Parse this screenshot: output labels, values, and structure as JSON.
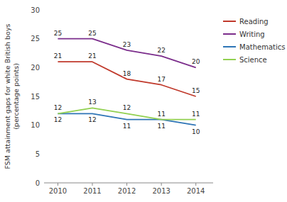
{
  "chart_data": {
    "type": "line",
    "ylabel": "FSM attainment gaps for white British boys\n(percentage points)",
    "x": [
      2010,
      2011,
      2012,
      2013,
      2014
    ],
    "xlim": [
      2009.6,
      2014.5
    ],
    "xticks": [
      2010,
      2011,
      2012,
      2013,
      2014
    ],
    "ylim": [
      0,
      30
    ],
    "yticks": [
      0,
      5,
      10,
      15,
      20,
      25,
      30
    ],
    "series": [
      {
        "name": "Reading",
        "color": "#c0392b",
        "values": [
          21,
          21,
          18,
          17,
          15
        ]
      },
      {
        "name": "Writing",
        "color": "#7b2d8b",
        "values": [
          25,
          25,
          23,
          22,
          20
        ]
      },
      {
        "name": "Mathematics",
        "color": "#2e75b6",
        "values": [
          12,
          12,
          11,
          11,
          10
        ]
      },
      {
        "name": "Science",
        "color": "#92d050",
        "values": [
          12,
          13,
          12,
          11,
          11
        ]
      }
    ],
    "data_labels": true,
    "grid": false,
    "legend": "right"
  }
}
